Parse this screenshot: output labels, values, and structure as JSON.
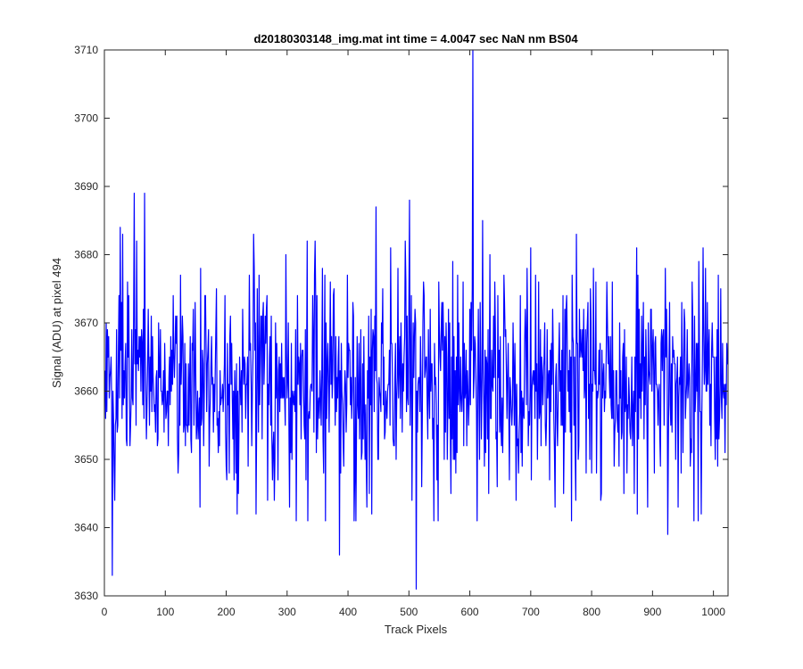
{
  "chart_data": {
    "type": "line",
    "title": "d20180303148_img.mat int time = 4.0047 sec  NaN nm BS04",
    "xlabel": "Track Pixels",
    "ylabel": "Signal (ADU) at pixel 494",
    "xlim": [
      0,
      1024
    ],
    "ylim": [
      3630,
      3710
    ],
    "xticks": [
      0,
      100,
      200,
      300,
      400,
      500,
      600,
      700,
      800,
      900,
      1000
    ],
    "yticks": [
      3630,
      3640,
      3650,
      3660,
      3670,
      3680,
      3690,
      3700,
      3710
    ],
    "grid": false,
    "legend": "none",
    "series": [
      {
        "color": "#0000ff",
        "x_start": 1,
        "x_step": 1,
        "mean": 3661,
        "noise_std": 8,
        "num_points": 1024,
        "notable_points": [
          {
            "x": 13,
            "y": 3633
          },
          {
            "x": 26,
            "y": 3684
          },
          {
            "x": 49,
            "y": 3689
          },
          {
            "x": 66,
            "y": 3689
          },
          {
            "x": 386,
            "y": 3636
          },
          {
            "x": 446,
            "y": 3687
          },
          {
            "x": 501,
            "y": 3688
          },
          {
            "x": 512,
            "y": 3631
          },
          {
            "x": 605,
            "y": 3710
          },
          {
            "x": 621,
            "y": 3685
          },
          {
            "x": 925,
            "y": 3639
          }
        ]
      }
    ]
  }
}
